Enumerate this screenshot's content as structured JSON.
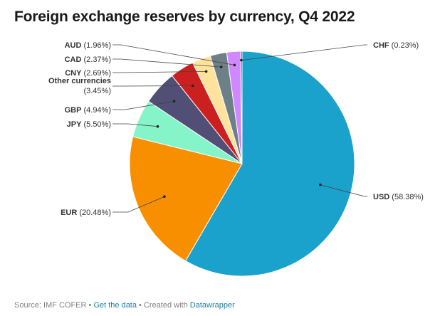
{
  "title": "Foreign exchange reserves by currency, Q4 2022",
  "footer": {
    "source": "Source: IMF COFER",
    "sep1": " • ",
    "get_data": "Get the data",
    "sep2": " • Created with ",
    "tool": "Datawrapper"
  },
  "chart_data": {
    "type": "pie",
    "title": "Foreign exchange reserves by currency, Q4 2022",
    "start_angle_deg": 0,
    "direction": "clockwise",
    "unit": "%",
    "slices": [
      {
        "name": "USD",
        "value": 58.38,
        "color": "#1aa1cc"
      },
      {
        "name": "EUR",
        "value": 20.48,
        "color": "#f88f00"
      },
      {
        "name": "JPY",
        "value": 5.5,
        "color": "#85f4c9"
      },
      {
        "name": "GBP",
        "value": 4.94,
        "color": "#514f75"
      },
      {
        "name": "Other currencies",
        "value": 3.45,
        "color": "#cc1f1f"
      },
      {
        "name": "CNY",
        "value": 2.69,
        "color": "#ffe29b"
      },
      {
        "name": "CAD",
        "value": 2.37,
        "color": "#6d8088"
      },
      {
        "name": "AUD",
        "value": 1.96,
        "color": "#cf88ff"
      },
      {
        "name": "CHF",
        "value": 0.23,
        "color": "#8a2c91"
      }
    ]
  }
}
